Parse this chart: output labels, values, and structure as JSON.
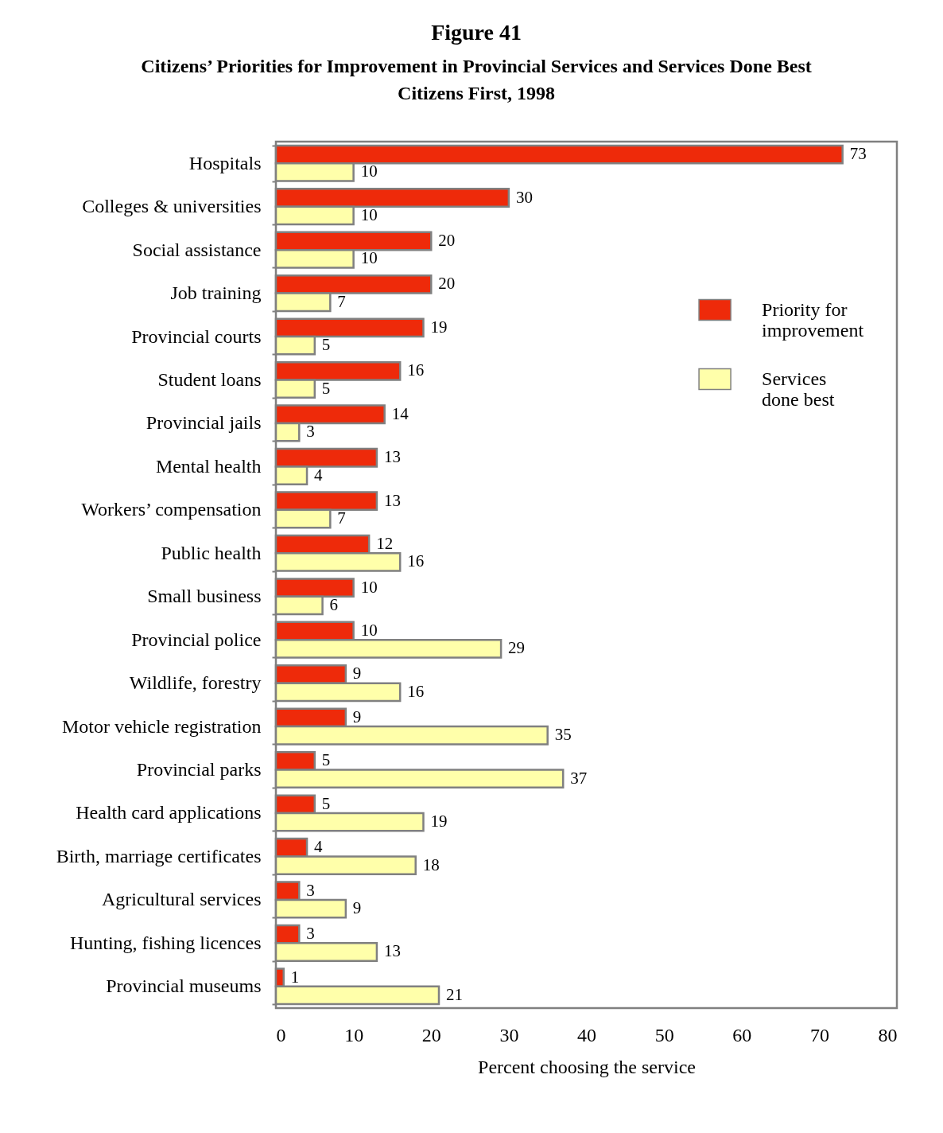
{
  "chart_data": {
    "type": "bar",
    "orientation": "horizontal",
    "title": "Figure 41",
    "subtitle": "Citizens’ Priorities for Improvement in Provincial Services and Services Done Best",
    "annotations": [
      "Citizens First, 1998"
    ],
    "xlabel": "Percent choosing the service",
    "categories": [
      "Hospitals",
      "Colleges & universities",
      "Social assistance",
      "Job training",
      "Provincial courts",
      "Student loans",
      "Provincial jails",
      "Mental health",
      "Workers’ compensation",
      "Public health",
      "Small business",
      "Provincial police",
      "Wildlife, forestry",
      "Motor vehicle registration",
      "Provincial parks",
      "Health card applications",
      "Birth, marriage certificates",
      "Agricultural services",
      "Hunting, fishing licences",
      "Provincial museums"
    ],
    "series": [
      {
        "name": "Priority for improvement",
        "color": "#ee2a0a",
        "values": [
          73,
          30,
          20,
          20,
          19,
          16,
          14,
          13,
          13,
          12,
          10,
          10,
          9,
          9,
          5,
          5,
          4,
          3,
          3,
          1
        ]
      },
      {
        "name": "Services done best",
        "color": "#ffffaa",
        "values": [
          10,
          10,
          10,
          7,
          5,
          5,
          3,
          4,
          7,
          16,
          6,
          29,
          16,
          35,
          37,
          19,
          18,
          9,
          13,
          21
        ]
      }
    ],
    "xlim": [
      0,
      80
    ],
    "xticks": [
      0,
      10,
      20,
      30,
      40,
      50,
      60,
      70,
      80
    ],
    "grid": false,
    "legend": "top right",
    "data_labels": true
  }
}
